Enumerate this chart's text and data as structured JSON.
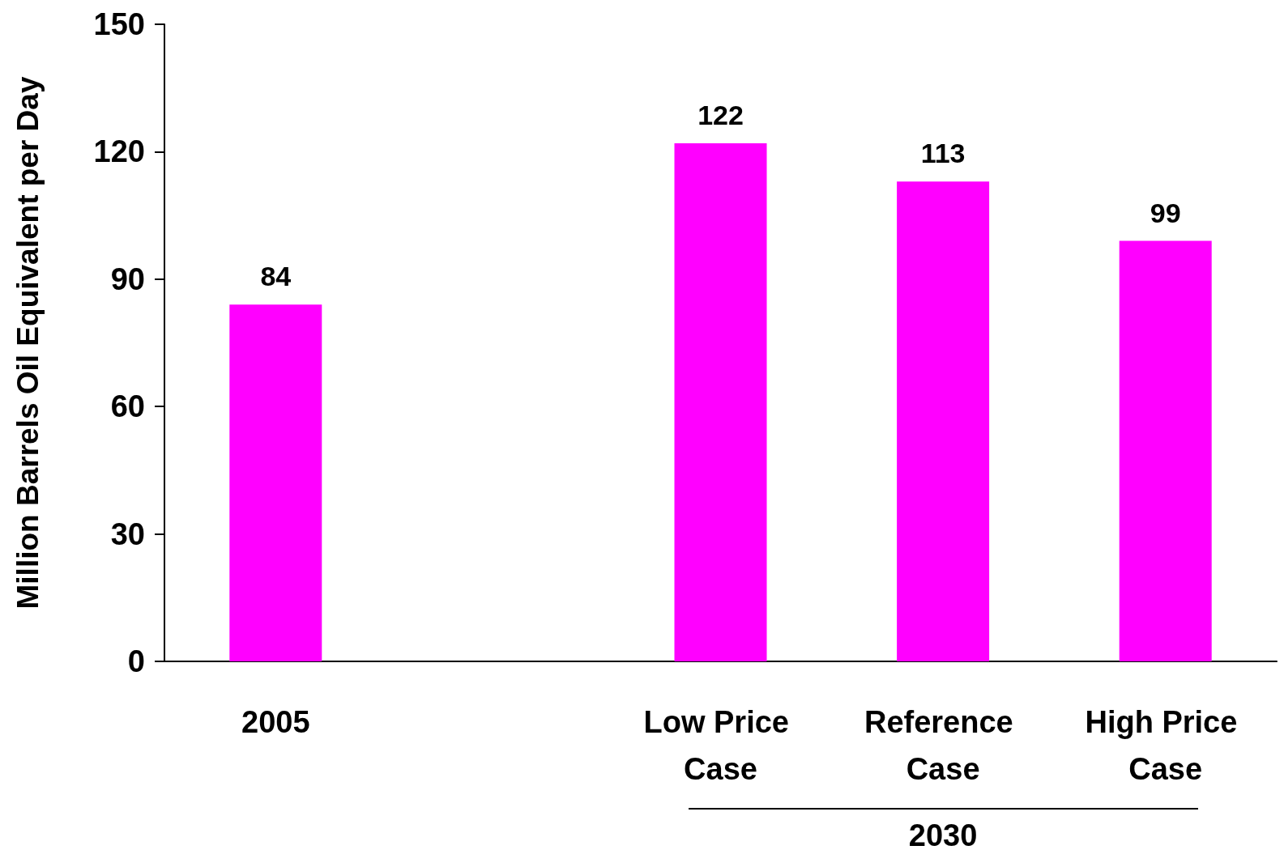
{
  "chart_data": {
    "type": "bar",
    "ylabel": "Million Barrels Oil Equivalent per Day",
    "categories": [
      "2005",
      null,
      "Low Price Case",
      "Reference Case",
      "High Price Case"
    ],
    "values": [
      84,
      null,
      122,
      113,
      99
    ],
    "color": "#ff00ff",
    "ylim": [
      0,
      150
    ],
    "yticks": [
      0,
      30,
      60,
      90,
      120,
      150
    ],
    "grid": false,
    "data_labels": true,
    "annotations": [
      "2030"
    ]
  }
}
